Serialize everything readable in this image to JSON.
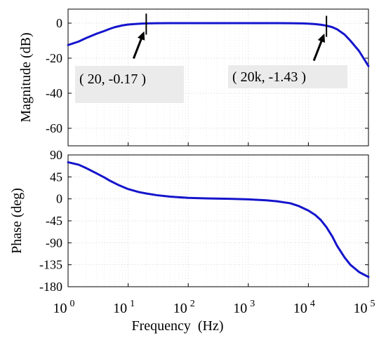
{
  "chart_data": [
    {
      "type": "line",
      "panel": "magnitude",
      "xscale": "log",
      "xlim": [
        1,
        100000
      ],
      "ylim": [
        -70,
        8
      ],
      "ylabel": "Magnitude (dB)",
      "yticks": [
        0,
        -20,
        -40,
        -60
      ],
      "ytick_labels": [
        "0",
        "-20",
        "-40",
        "-60"
      ],
      "grid": true,
      "color": "#1414cc",
      "series": [
        {
          "x": [
            1,
            1.5,
            2,
            3,
            4,
            5,
            6,
            8,
            10,
            13,
            16,
            20,
            30,
            50,
            100,
            300,
            1000,
            3000,
            5000,
            8000,
            10000,
            13000,
            16000,
            20000,
            25000,
            30000,
            40000,
            50000,
            70000,
            100000
          ],
          "values": [
            -12.5,
            -10.5,
            -8.5,
            -6,
            -4.5,
            -3.2,
            -2.3,
            -1.3,
            -0.8,
            -0.5,
            -0.3,
            -0.17,
            -0.05,
            0,
            0,
            0,
            0,
            0,
            -0.05,
            -0.15,
            -0.3,
            -0.55,
            -0.9,
            -1.43,
            -2.3,
            -3.5,
            -6.5,
            -10,
            -16,
            -24.5
          ]
        }
      ],
      "annotations": [
        {
          "text": "( 20, -0.17 )",
          "x": 20,
          "y": -0.17
        },
        {
          "text": "( 20k, -1.43 )",
          "x": 20000,
          "y": -1.43
        }
      ]
    },
    {
      "type": "line",
      "panel": "phase",
      "xscale": "log",
      "xlim": [
        1,
        100000
      ],
      "ylim": [
        -180,
        90
      ],
      "xlabel": "Frequency  (Hz)",
      "ylabel": "Phase (deg)",
      "yticks": [
        90,
        45,
        0,
        -45,
        -90,
        -135,
        -180
      ],
      "ytick_labels": [
        "90",
        "45",
        "0",
        "-45",
        "-90",
        "-135",
        "-180"
      ],
      "xticks": [
        1,
        10,
        100,
        1000,
        10000,
        100000
      ],
      "xtick_bases": [
        "10",
        "10",
        "10",
        "10",
        "10",
        "10"
      ],
      "xtick_exps": [
        "0",
        "1",
        "2",
        "3",
        "4",
        "5"
      ],
      "grid": true,
      "color": "#1414cc",
      "series": [
        {
          "x": [
            1,
            1.5,
            2,
            3,
            4,
            5,
            7,
            10,
            15,
            20,
            30,
            50,
            100,
            200,
            500,
            1000,
            2000,
            3000,
            5000,
            7000,
            10000,
            13000,
            16000,
            20000,
            25000,
            30000,
            40000,
            50000,
            70000,
            100000
          ],
          "values": [
            75,
            70,
            63,
            52,
            44,
            37,
            28,
            20,
            14,
            11,
            7.5,
            4.5,
            2,
            1,
            0,
            -1,
            -3,
            -5,
            -9,
            -15,
            -24,
            -33,
            -43,
            -58,
            -77,
            -96,
            -120,
            -135,
            -150,
            -160
          ]
        }
      ]
    }
  ]
}
